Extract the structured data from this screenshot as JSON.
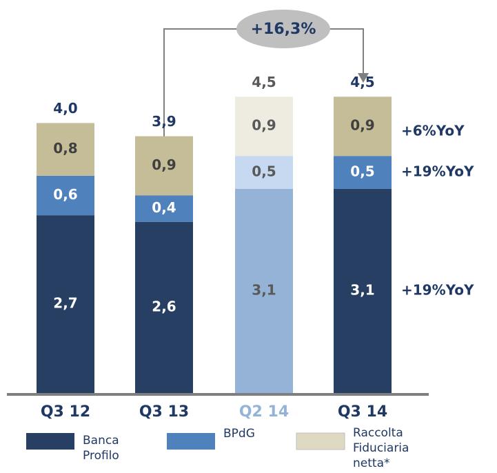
{
  "chart_data": {
    "type": "stacked_bar",
    "categories": [
      "Q3 12",
      "Q3 13",
      "Q2 14",
      "Q3 14"
    ],
    "series": [
      {
        "name": "Banca Profilo",
        "color": "#263f63",
        "colors": [
          "#263f63",
          "#263f63",
          "#95b3d7",
          "#263f63"
        ],
        "values": [
          2.7,
          2.6,
          3.1,
          3.1
        ],
        "value_labels": [
          "2,7",
          "2,6",
          "3,1",
          "3,1"
        ],
        "annotation": "+19%YoY"
      },
      {
        "name": "BPdG",
        "color": "#4f81bd",
        "colors": [
          "#4f81bd",
          "#4f81bd",
          "#c6d9f1",
          "#4f81bd"
        ],
        "values": [
          0.6,
          0.4,
          0.5,
          0.5
        ],
        "value_labels": [
          "0,6",
          "0,4",
          "0,5",
          "0,5"
        ],
        "annotation": "+19%YoY"
      },
      {
        "name": "Raccolta Fiduciaria netta*",
        "color": "#c4bd97",
        "colors": [
          "#c4bd97",
          "#c4bd97",
          "#eeece1",
          "#c4bd97"
        ],
        "values": [
          0.8,
          0.9,
          0.9,
          0.9
        ],
        "value_labels": [
          "0,8",
          "0,9",
          "0,9",
          "0,9"
        ],
        "annotation": "+6%YoY"
      }
    ],
    "totals": [
      4.0,
      3.9,
      4.5,
      4.5
    ],
    "total_labels": [
      "4,0",
      "3,9",
      "4,5",
      "4,5"
    ],
    "growth_label": "+16,3%"
  }
}
